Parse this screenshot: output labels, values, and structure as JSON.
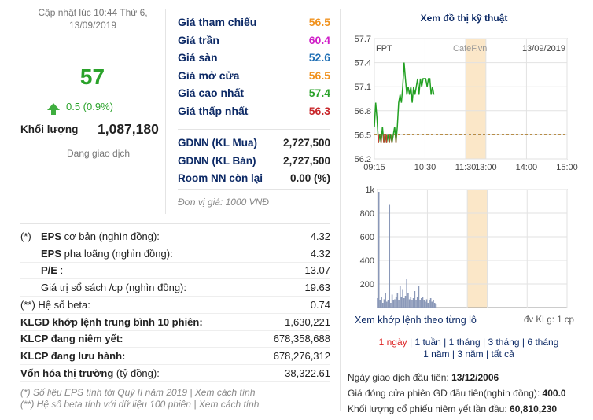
{
  "summary": {
    "update_time": "Cập nhật lúc 10:44 Thứ 6, 13/09/2019",
    "price": "57",
    "change": "0.5 (0.9%)",
    "volume_label": "Khối lượng",
    "volume_value": "1,087,180",
    "status": "Đang giao dịch",
    "up_color": "#2aa22a"
  },
  "ref_prices": [
    {
      "label": "Giá tham chiếu",
      "value": "56.5",
      "color": "#f0921e"
    },
    {
      "label": "Giá trần",
      "value": "60.4",
      "color": "#d020c8"
    },
    {
      "label": "Giá sàn",
      "value": "52.6",
      "color": "#1f6fb5"
    },
    {
      "label": "Giá mở cửa",
      "value": "56.5",
      "color": "#f0921e"
    },
    {
      "label": "Giá cao nhất",
      "value": "57.4",
      "color": "#2aa22a"
    },
    {
      "label": "Giá thấp nhất",
      "value": "56.3",
      "color": "#c8262a"
    }
  ],
  "foreign": [
    {
      "label": "GDNN (KL Mua)",
      "value": "2,727,500"
    },
    {
      "label": "GDNN (KL Bán)",
      "value": "2,727,500"
    },
    {
      "label": "Room NN còn lại",
      "value": "0.00 (%)"
    }
  ],
  "unit_note": "Đơn vị giá: 1000 VNĐ",
  "fundamentals": [
    {
      "prefix": "(*)",
      "label_bold": "EPS",
      "label_rest": " cơ bản (nghìn đồng):",
      "value": "4.32"
    },
    {
      "prefix": "",
      "label_bold": "EPS",
      "label_rest": " pha loãng (nghìn đồng):",
      "value": "4.32"
    },
    {
      "prefix": "",
      "label_bold": "P/E",
      "label_rest": " :",
      "value": "13.07"
    },
    {
      "prefix": "",
      "label_bold": "",
      "label_rest": "Giá trị sổ sách /cp (nghìn đồng):",
      "value": "19.63"
    },
    {
      "prefix": "(**)",
      "label_bold": "",
      "label_rest": " Hệ số beta:",
      "value": "0.74"
    },
    {
      "prefix": "",
      "label_bold": "KLGD khớp lệnh trung bình 10 phiên:",
      "label_rest": "",
      "value": "1,630,221"
    },
    {
      "prefix": "",
      "label_bold": "KLCP đang niêm yết:",
      "label_rest": "",
      "value": "678,358,688"
    },
    {
      "prefix": "",
      "label_bold": "KLCP đang lưu hành:",
      "label_rest": "",
      "value": "678,276,312"
    },
    {
      "prefix": "",
      "label_bold": "Vốn hóa thị trường",
      "label_rest": " (tỷ đồng):",
      "value": "38,322.61"
    }
  ],
  "footnotes": [
    "(*) Số liệu EPS tính tới Quý II năm 2019 | Xem cách tính",
    "(**) Hệ số beta tính với dữ liệu 100 phiên | Xem cách tính"
  ],
  "chart_panel": {
    "title": "Xem đồ thị kỹ thuật",
    "ticker": "FPT",
    "watermark": "CafeF.vn",
    "date": "13/09/2019",
    "intraday_link": "Xem khớp lệnh theo từng lô",
    "vol_unit": "đv KLg: 1 cp",
    "periods_line1": [
      "1 ngày",
      "1 tuần",
      "1 tháng",
      "3 tháng",
      "6 tháng"
    ],
    "periods_line2": [
      "1 năm",
      "3 năm",
      "tất cả"
    ],
    "active_period": "1 ngày",
    "first_trade_label": "Ngày giao dịch đầu tiên:",
    "first_trade_value": "13/12/2006",
    "first_close_label": "Giá đóng cửa phiên GD đầu tiên(nghìn đồng):",
    "first_close_value": "400.0",
    "first_listed_label": "Khối lượng cổ phiếu niêm yết lần đầu:",
    "first_listed_value": "60,810,230",
    "price_line_color": "#22a022",
    "ref_line_color": "#b08030",
    "lunch_band_color": "#fbe7c8"
  },
  "chart_data": [
    {
      "type": "line",
      "title": "",
      "y_ticks": [
        "57.7",
        "57.4",
        "57.1",
        "56.8",
        "56.5",
        "56.2"
      ],
      "ylim": [
        56.2,
        57.7
      ],
      "x_ticks": [
        "09:15",
        "10:30",
        "11:30",
        "13:00",
        "14:00",
        "15:00"
      ],
      "x_tick_minutes": [
        0,
        75,
        135,
        165,
        225,
        285
      ],
      "reference": 56.5,
      "series": [
        {
          "x_minutes": [
            0,
            2,
            4,
            6,
            8,
            10,
            12,
            14,
            16,
            18,
            20,
            22,
            24,
            26,
            28,
            30,
            32,
            34,
            36,
            38,
            40,
            42,
            44,
            46,
            48,
            50,
            52,
            54,
            56,
            58,
            60,
            62,
            64,
            66,
            68,
            70,
            72,
            74,
            76,
            78,
            80,
            82,
            84,
            86,
            88
          ],
          "values": [
            56.6,
            56.9,
            56.7,
            56.4,
            56.5,
            56.4,
            56.6,
            56.4,
            56.5,
            56.4,
            56.5,
            56.4,
            56.5,
            56.4,
            56.5,
            56.6,
            56.4,
            56.6,
            56.9,
            57.0,
            56.9,
            57.1,
            57.4,
            57.2,
            57.0,
            57.1,
            57.0,
            57.1,
            56.9,
            57.1,
            57.0,
            57.1,
            57.2,
            57.0,
            57.2,
            57.1,
            57.2,
            57.2,
            57.2,
            57.1,
            57.2,
            57.2,
            57.0,
            57.1,
            57.0
          ]
        }
      ]
    },
    {
      "type": "bar",
      "title": "",
      "y_ticks": [
        "1k",
        "800",
        "600",
        "400",
        "200"
      ],
      "ylim": [
        0,
        1000
      ],
      "x_minutes": [
        0,
        2,
        4,
        6,
        8,
        10,
        12,
        14,
        16,
        18,
        20,
        22,
        24,
        26,
        28,
        30,
        32,
        34,
        36,
        38,
        40,
        42,
        44,
        46,
        48,
        50,
        52,
        54,
        56,
        58,
        60,
        62,
        64,
        66,
        68,
        70,
        72,
        74,
        76,
        78,
        80,
        82,
        84,
        86,
        88
      ],
      "values": [
        80,
        980,
        60,
        90,
        40,
        70,
        120,
        50,
        60,
        870,
        40,
        110,
        60,
        70,
        90,
        120,
        60,
        180,
        90,
        150,
        80,
        100,
        240,
        120,
        70,
        90,
        60,
        80,
        140,
        60,
        90,
        180,
        60,
        80,
        90,
        60,
        50,
        70,
        40,
        60,
        80,
        50,
        60,
        40,
        30
      ]
    }
  ]
}
